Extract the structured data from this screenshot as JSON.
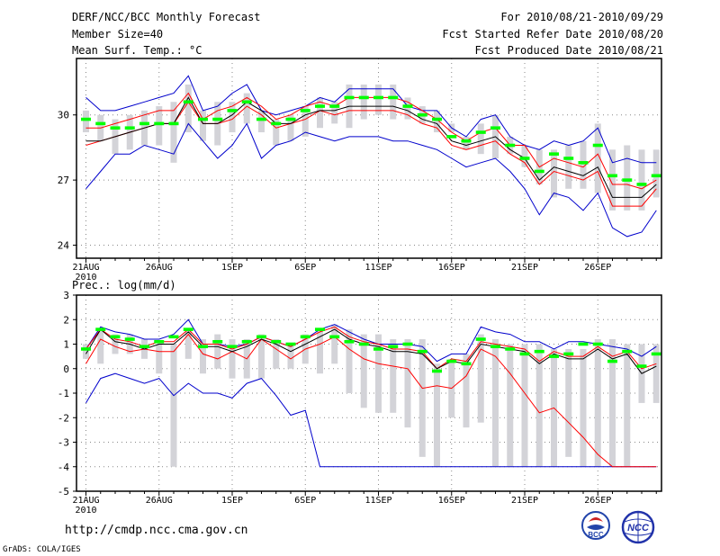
{
  "header": {
    "title": "DERF/NCC/BCC Monthly Forecast",
    "member_size": "Member Size=40",
    "variable": "Mean Surf. Temp.: °C",
    "period": "For 2010/08/21-2010/09/29",
    "started": "Fcst Started Refer Date 2010/08/20",
    "produced": "Fcst Produced Date 2010/08/21"
  },
  "footer": {
    "url": "http://cmdp.ncc.cma.gov.cn",
    "credit": "GrADS: COLA/IGES",
    "logo_bcc": "BCC",
    "logo_ncc": "NCC"
  },
  "colors": {
    "box": "#d3d3d8",
    "mean": "#00ff00",
    "median": "#000000",
    "inner": "#ff0000",
    "outer": "#0000cc",
    "frame": "#000000",
    "grid": "#888888"
  },
  "chart_data": [
    {
      "type": "line",
      "title": "Mean Surf. Temp.: °C",
      "ylim": [
        23.4,
        32.6
      ],
      "yticks": [
        24,
        27,
        30
      ],
      "x_tick_labels": [
        "21AUG",
        "26AUG",
        "1SEP",
        "6SEP",
        "11SEP",
        "16SEP",
        "21SEP",
        "26SEP"
      ],
      "year_label": "2010",
      "days": 40,
      "box_low": [
        29.2,
        28.8,
        28.2,
        28.4,
        28.6,
        28.6,
        27.8,
        29.2,
        28.8,
        28.6,
        29.2,
        29.6,
        29.2,
        28.6,
        28.8,
        29.0,
        29.4,
        29.6,
        29.4,
        29.8,
        30.0,
        29.8,
        29.8,
        29.6,
        29.2,
        29.2,
        28.4,
        28.2,
        28.0,
        28.2,
        27.6,
        26.8,
        26.2,
        26.6,
        26.6,
        26.4,
        25.6,
        25.6,
        25.6,
        26.2
      ],
      "box_high": [
        30.2,
        30.0,
        29.8,
        30.0,
        30.2,
        30.4,
        30.6,
        31.4,
        30.2,
        30.6,
        30.6,
        31.0,
        30.2,
        29.8,
        30.0,
        30.4,
        30.8,
        30.6,
        31.4,
        31.4,
        31.4,
        31.4,
        30.8,
        30.4,
        30.2,
        29.6,
        29.0,
        29.6,
        30.0,
        29.0,
        28.6,
        28.4,
        28.4,
        28.6,
        28.8,
        29.6,
        28.4,
        28.6,
        28.4,
        28.4
      ],
      "mean": [
        29.8,
        29.6,
        29.4,
        29.4,
        29.6,
        29.6,
        29.6,
        30.6,
        29.8,
        29.8,
        30.2,
        30.6,
        29.8,
        29.6,
        29.8,
        30.2,
        30.4,
        30.4,
        30.8,
        30.8,
        30.8,
        30.8,
        30.4,
        30.0,
        29.8,
        29.0,
        28.8,
        29.2,
        29.4,
        28.6,
        28.0,
        27.4,
        28.2,
        28.0,
        27.8,
        28.6,
        27.2,
        27.0,
        26.8,
        27.2
      ],
      "median": [
        28.8,
        28.8,
        29.0,
        29.2,
        29.4,
        29.6,
        29.6,
        30.8,
        29.6,
        29.6,
        30.0,
        30.6,
        30.2,
        29.6,
        29.6,
        30.0,
        30.2,
        30.2,
        30.4,
        30.4,
        30.4,
        30.4,
        30.2,
        29.8,
        29.6,
        28.8,
        28.6,
        28.8,
        29.0,
        28.4,
        28.0,
        27.0,
        27.6,
        27.4,
        27.2,
        27.6,
        26.2,
        26.2,
        26.2,
        26.8
      ],
      "inner_high": [
        29.4,
        29.4,
        29.6,
        29.8,
        30.0,
        30.2,
        30.2,
        31.0,
        29.8,
        30.2,
        30.4,
        30.8,
        30.4,
        29.8,
        30.0,
        30.4,
        30.6,
        30.4,
        30.8,
        30.8,
        30.8,
        30.8,
        30.6,
        30.2,
        29.8,
        29.2,
        28.8,
        29.2,
        29.4,
        28.6,
        28.6,
        27.6,
        28.0,
        27.8,
        27.6,
        28.2,
        26.8,
        26.8,
        26.6,
        27.0
      ],
      "inner_low": [
        28.6,
        28.8,
        29.0,
        29.2,
        29.4,
        29.6,
        29.6,
        30.6,
        29.6,
        29.6,
        29.8,
        30.4,
        30.0,
        29.4,
        29.6,
        29.8,
        30.2,
        30.0,
        30.2,
        30.2,
        30.2,
        30.2,
        30.0,
        29.6,
        29.4,
        28.6,
        28.4,
        28.6,
        28.8,
        28.2,
        27.8,
        26.8,
        27.4,
        27.2,
        27.0,
        27.4,
        25.8,
        25.8,
        25.8,
        26.6
      ],
      "outer_high": [
        30.8,
        30.2,
        30.2,
        30.4,
        30.6,
        30.8,
        31.0,
        31.8,
        30.2,
        30.4,
        31.0,
        31.4,
        30.2,
        30.0,
        30.2,
        30.4,
        30.8,
        30.6,
        31.2,
        31.2,
        31.2,
        31.2,
        30.4,
        30.2,
        30.2,
        29.4,
        29.0,
        29.8,
        30.0,
        29.0,
        28.6,
        28.4,
        28.8,
        28.6,
        28.8,
        29.4,
        27.8,
        28.0,
        27.8,
        27.8
      ],
      "outer_low": [
        26.6,
        27.4,
        28.2,
        28.2,
        28.6,
        28.4,
        28.2,
        29.6,
        28.8,
        28.0,
        28.6,
        29.6,
        28.0,
        28.6,
        28.8,
        29.2,
        29.0,
        28.8,
        29.0,
        29.0,
        29.0,
        28.8,
        28.8,
        28.6,
        28.4,
        28.0,
        27.6,
        27.8,
        28.0,
        27.4,
        26.6,
        25.4,
        26.4,
        26.2,
        25.6,
        26.4,
        24.8,
        24.4,
        24.6,
        25.6
      ]
    },
    {
      "type": "line",
      "title": "Prec.: log(mm/d)",
      "ylim": [
        -5,
        3
      ],
      "yticks": [
        -5,
        -4,
        -3,
        -2,
        -1,
        0,
        1,
        2,
        3
      ],
      "x_tick_labels": [
        "21AUG",
        "26AUG",
        "1SEP",
        "6SEP",
        "11SEP",
        "16SEP",
        "21SEP",
        "26SEP"
      ],
      "year_label": "2010",
      "days": 40,
      "box_low": [
        0.4,
        0.2,
        0.6,
        0.6,
        0.4,
        -0.2,
        -4.0,
        0.4,
        -0.2,
        0.0,
        -0.4,
        -0.4,
        -0.4,
        0.0,
        0.0,
        0.2,
        -0.2,
        0.2,
        -1.0,
        -1.6,
        -1.8,
        -1.8,
        -2.4,
        -3.6,
        -4.0,
        -2.0,
        -2.4,
        -2.2,
        -4.0,
        -4.0,
        -4.0,
        -4.0,
        -4.0,
        -3.6,
        -4.0,
        -4.0,
        -4.0,
        -4.0,
        -1.4,
        -1.4
      ],
      "box_high": [
        1.0,
        1.6,
        1.4,
        1.4,
        1.2,
        1.0,
        1.0,
        1.6,
        1.2,
        1.4,
        1.2,
        1.2,
        1.4,
        1.2,
        1.0,
        1.4,
        1.6,
        1.8,
        1.6,
        1.4,
        1.4,
        1.2,
        1.2,
        1.2,
        0.2,
        0.4,
        0.6,
        1.4,
        1.2,
        1.0,
        1.0,
        1.0,
        0.8,
        0.8,
        0.8,
        1.2,
        1.2,
        1.0,
        1.0,
        1.0
      ],
      "mean": [
        0.8,
        1.6,
        1.3,
        1.2,
        0.9,
        1.1,
        1.3,
        1.6,
        0.9,
        1.1,
        0.9,
        1.1,
        1.3,
        1.1,
        1.0,
        1.3,
        1.6,
        1.3,
        1.1,
        1.0,
        0.8,
        0.9,
        1.0,
        0.7,
        -0.1,
        0.3,
        0.2,
        1.2,
        0.9,
        0.8,
        0.6,
        0.7,
        0.5,
        0.6,
        1.0,
        1.0,
        0.3,
        0.7,
        0.1,
        0.6
      ],
      "median": [
        0.6,
        1.6,
        1.1,
        1.0,
        0.8,
        1.0,
        1.0,
        1.5,
        0.9,
        0.9,
        0.7,
        0.9,
        1.2,
        1.0,
        0.7,
        1.0,
        1.3,
        1.6,
        1.2,
        1.0,
        0.9,
        0.7,
        0.7,
        0.6,
        0.0,
        0.3,
        0.2,
        1.0,
        0.9,
        0.8,
        0.7,
        0.2,
        0.6,
        0.4,
        0.4,
        0.8,
        0.4,
        0.6,
        -0.2,
        0.1
      ],
      "inner_high": [
        0.8,
        1.6,
        1.2,
        1.1,
        0.9,
        1.1,
        1.1,
        1.6,
        1.0,
        1.0,
        0.8,
        1.0,
        1.3,
        1.1,
        0.9,
        1.2,
        1.5,
        1.7,
        1.3,
        1.1,
        1.0,
        0.8,
        0.8,
        0.7,
        0.0,
        0.4,
        0.3,
        1.1,
        1.0,
        0.9,
        0.8,
        0.3,
        0.7,
        0.5,
        0.5,
        0.9,
        0.5,
        0.7,
        0.0,
        0.2
      ],
      "inner_low": [
        0.2,
        1.2,
        0.9,
        0.7,
        0.8,
        0.7,
        0.7,
        1.4,
        0.6,
        0.4,
        0.7,
        0.4,
        1.2,
        0.8,
        0.4,
        0.8,
        1.0,
        1.3,
        0.8,
        0.4,
        0.2,
        0.1,
        0.0,
        -0.8,
        -0.7,
        -0.8,
        -0.3,
        0.8,
        0.5,
        -0.2,
        -1.0,
        -1.8,
        -1.6,
        -2.2,
        -2.8,
        -3.5,
        -4.0,
        -4.0,
        -4.0,
        -4.0
      ],
      "outer_high": [
        0.8,
        1.7,
        1.5,
        1.4,
        1.2,
        1.2,
        1.4,
        2.0,
        1.0,
        1.0,
        0.9,
        1.0,
        1.3,
        1.1,
        0.9,
        1.2,
        1.6,
        1.8,
        1.5,
        1.2,
        1.0,
        1.0,
        1.0,
        0.9,
        0.3,
        0.6,
        0.6,
        1.7,
        1.5,
        1.4,
        1.1,
        1.1,
        0.8,
        1.1,
        1.1,
        1.0,
        0.9,
        0.8,
        0.5,
        0.9
      ],
      "outer_low": [
        -1.4,
        -0.4,
        -0.2,
        -0.4,
        -0.6,
        -0.4,
        -1.1,
        -0.6,
        -1.0,
        -1.0,
        -1.2,
        -0.6,
        -0.4,
        -1.1,
        -1.9,
        -1.7,
        -4.0,
        -4.0,
        -4.0,
        -4.0,
        -4.0,
        -4.0,
        -4.0,
        -4.0,
        -4.0,
        -4.0,
        -4.0,
        -4.0,
        -4.0,
        -4.0,
        -4.0,
        -4.0,
        -4.0,
        -4.0,
        -4.0,
        -4.0,
        -4.0,
        -4.0,
        -4.0,
        -4.0
      ]
    }
  ]
}
